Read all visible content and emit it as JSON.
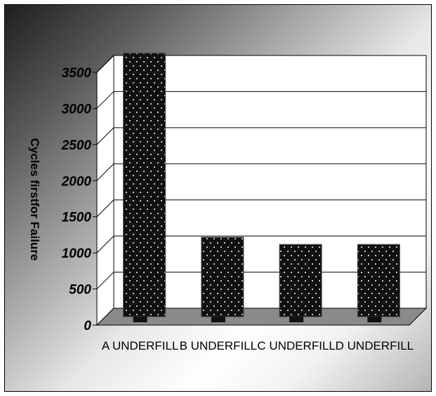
{
  "chart_data": {
    "type": "bar",
    "categories": [
      "A UNDERFILL",
      "B UNDERFILL",
      "C UNDERFILL",
      "D UNDERFILL"
    ],
    "values": [
      3650,
      1100,
      1000,
      1000
    ],
    "ylabel": "Cycles firstfor Failure",
    "xlabel": "",
    "ylim": [
      0,
      3500
    ],
    "yticks": [
      0,
      500,
      1000,
      1500,
      2000,
      2500,
      3000,
      3500
    ],
    "grid": true,
    "bar_style": "3d-dotted",
    "colors": {
      "bar": "#111111",
      "floor": "#8a8a8a",
      "wall": "#ffffff",
      "grid": "#000000"
    }
  }
}
